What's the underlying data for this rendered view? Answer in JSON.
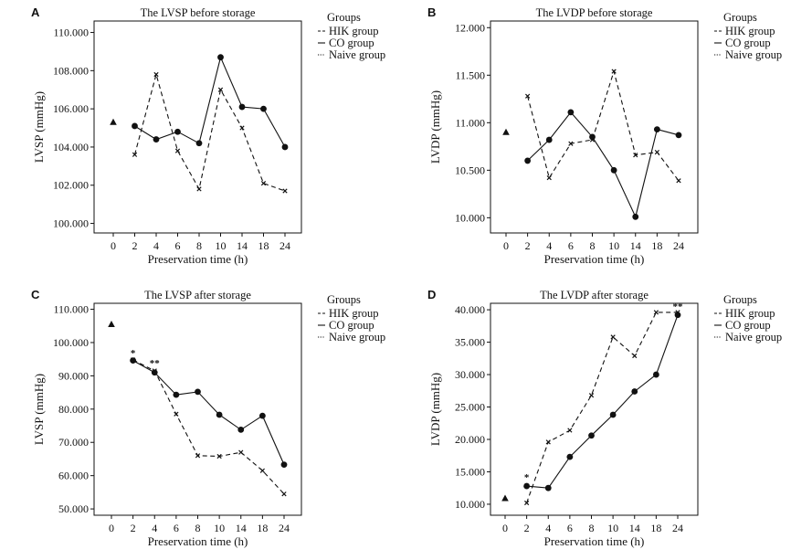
{
  "chart_data": [
    {
      "panel": "A",
      "type": "line",
      "title": "The LVSP before storage",
      "xlabel": "Preservation time (h)",
      "ylabel": "LVSP (mmHg)",
      "categories": [
        "0",
        "2",
        "4",
        "6",
        "8",
        "10",
        "14",
        "18",
        "24"
      ],
      "y_ticks": [
        100,
        102,
        104,
        106,
        108,
        110
      ],
      "y_tick_labels": [
        "100.000",
        "102.000",
        "104.000",
        "106.000",
        "108.000",
        "110.000"
      ],
      "ylim": [
        99.5,
        110.6
      ],
      "legend": {
        "title": "Groups",
        "position": "outside-right",
        "entries": [
          "HIK group",
          "CO group",
          "Naive group"
        ]
      },
      "series": [
        {
          "name": "HIK group",
          "style": "dashed",
          "marker": "x",
          "values": [
            null,
            103.6,
            107.8,
            103.8,
            101.8,
            107.0,
            105.0,
            102.1,
            101.7
          ]
        },
        {
          "name": "CO group",
          "style": "solid",
          "marker": "circle",
          "values": [
            null,
            105.1,
            104.4,
            104.8,
            104.2,
            108.7,
            106.1,
            106.0,
            104.0
          ]
        },
        {
          "name": "Naive group",
          "style": "dotted",
          "marker": "triangle",
          "values": [
            105.3,
            null,
            null,
            null,
            null,
            null,
            null,
            null,
            null
          ]
        }
      ],
      "annotations": []
    },
    {
      "panel": "B",
      "type": "line",
      "title": "The LVDP before storage",
      "xlabel": "Preservation time (h)",
      "ylabel": "LVDP (mmHg)",
      "categories": [
        "0",
        "2",
        "4",
        "6",
        "8",
        "10",
        "14",
        "18",
        "24"
      ],
      "y_ticks": [
        10,
        10.5,
        11,
        11.5,
        12
      ],
      "y_tick_labels": [
        "10.000",
        "10.500",
        "11.000",
        "11.500",
        "12.000"
      ],
      "ylim": [
        9.84,
        12.07
      ],
      "legend": {
        "title": "Groups",
        "position": "outside-right",
        "entries": [
          "HIK group",
          "CO group",
          "Naive group"
        ]
      },
      "series": [
        {
          "name": "HIK group",
          "style": "dashed",
          "marker": "x",
          "values": [
            null,
            11.28,
            10.42,
            10.78,
            10.82,
            11.54,
            10.66,
            10.69,
            10.39
          ]
        },
        {
          "name": "CO group",
          "style": "solid",
          "marker": "circle",
          "values": [
            null,
            10.6,
            10.82,
            11.11,
            10.85,
            10.5,
            10.01,
            10.93,
            10.87
          ]
        },
        {
          "name": "Naive group",
          "style": "dotted",
          "marker": "triangle",
          "values": [
            10.9,
            null,
            null,
            null,
            null,
            null,
            null,
            null,
            null
          ]
        }
      ],
      "annotations": []
    },
    {
      "panel": "C",
      "type": "line",
      "title": "The LVSP after storage",
      "xlabel": "Preservation time (h)",
      "ylabel": "LVSP (mmHg)",
      "categories": [
        "0",
        "2",
        "4",
        "6",
        "8",
        "10",
        "14",
        "18",
        "24"
      ],
      "y_ticks": [
        50,
        60,
        70,
        80,
        90,
        100,
        110
      ],
      "y_tick_labels": [
        "50.000",
        "60.000",
        "70.000",
        "80.000",
        "90.000",
        "100.000",
        "110.000"
      ],
      "ylim": [
        48.1,
        111.8
      ],
      "legend": {
        "title": "Groups",
        "position": "outside-right",
        "entries": [
          "HIK group",
          "CO group",
          "Naive group"
        ]
      },
      "series": [
        {
          "name": "HIK group",
          "style": "dashed",
          "marker": "x",
          "values": [
            null,
            94.8,
            91.5,
            78.5,
            66.0,
            65.8,
            67.0,
            61.5,
            54.5
          ]
        },
        {
          "name": "CO group",
          "style": "solid",
          "marker": "circle",
          "values": [
            null,
            94.6,
            91.0,
            84.3,
            85.2,
            78.3,
            73.8,
            78.0,
            63.3
          ]
        },
        {
          "name": "Naive group",
          "style": "dotted",
          "marker": "triangle",
          "values": [
            105.5,
            null,
            null,
            null,
            null,
            null,
            null,
            null,
            null
          ]
        }
      ],
      "annotations": [
        {
          "category": "2",
          "y": 97.0,
          "text": "*"
        },
        {
          "category": "4",
          "y": 94.0,
          "text": "**"
        }
      ]
    },
    {
      "panel": "D",
      "type": "line",
      "title": "The LVDP after storage",
      "xlabel": "Preservation time (h)",
      "ylabel": "LVDP (mmHg)",
      "categories": [
        "0",
        "2",
        "4",
        "6",
        "8",
        "10",
        "14",
        "18",
        "24"
      ],
      "y_ticks": [
        10,
        15,
        20,
        25,
        30,
        35,
        40
      ],
      "y_tick_labels": [
        "10.000",
        "15.000",
        "20.000",
        "25.000",
        "30.000",
        "35.000",
        "40.000"
      ],
      "ylim": [
        8.3,
        41.0
      ],
      "legend": {
        "title": "Groups",
        "position": "outside-right",
        "entries": [
          "HIK group",
          "CO group",
          "Naive group"
        ]
      },
      "series": [
        {
          "name": "HIK group",
          "style": "dashed",
          "marker": "x",
          "values": [
            null,
            10.2,
            19.6,
            21.4,
            26.8,
            35.8,
            32.9,
            39.6,
            39.6
          ]
        },
        {
          "name": "CO group",
          "style": "solid",
          "marker": "circle",
          "values": [
            null,
            12.8,
            12.5,
            17.3,
            20.6,
            23.8,
            27.4,
            30.0,
            39.2
          ]
        },
        {
          "name": "Naive group",
          "style": "dotted",
          "marker": "triangle",
          "values": [
            10.9,
            null,
            null,
            null,
            null,
            null,
            null,
            null,
            null
          ]
        }
      ],
      "annotations": [
        {
          "category": "2",
          "y": 14.2,
          "text": "*"
        },
        {
          "category": "24",
          "y": 40.6,
          "text": "**"
        }
      ]
    }
  ]
}
